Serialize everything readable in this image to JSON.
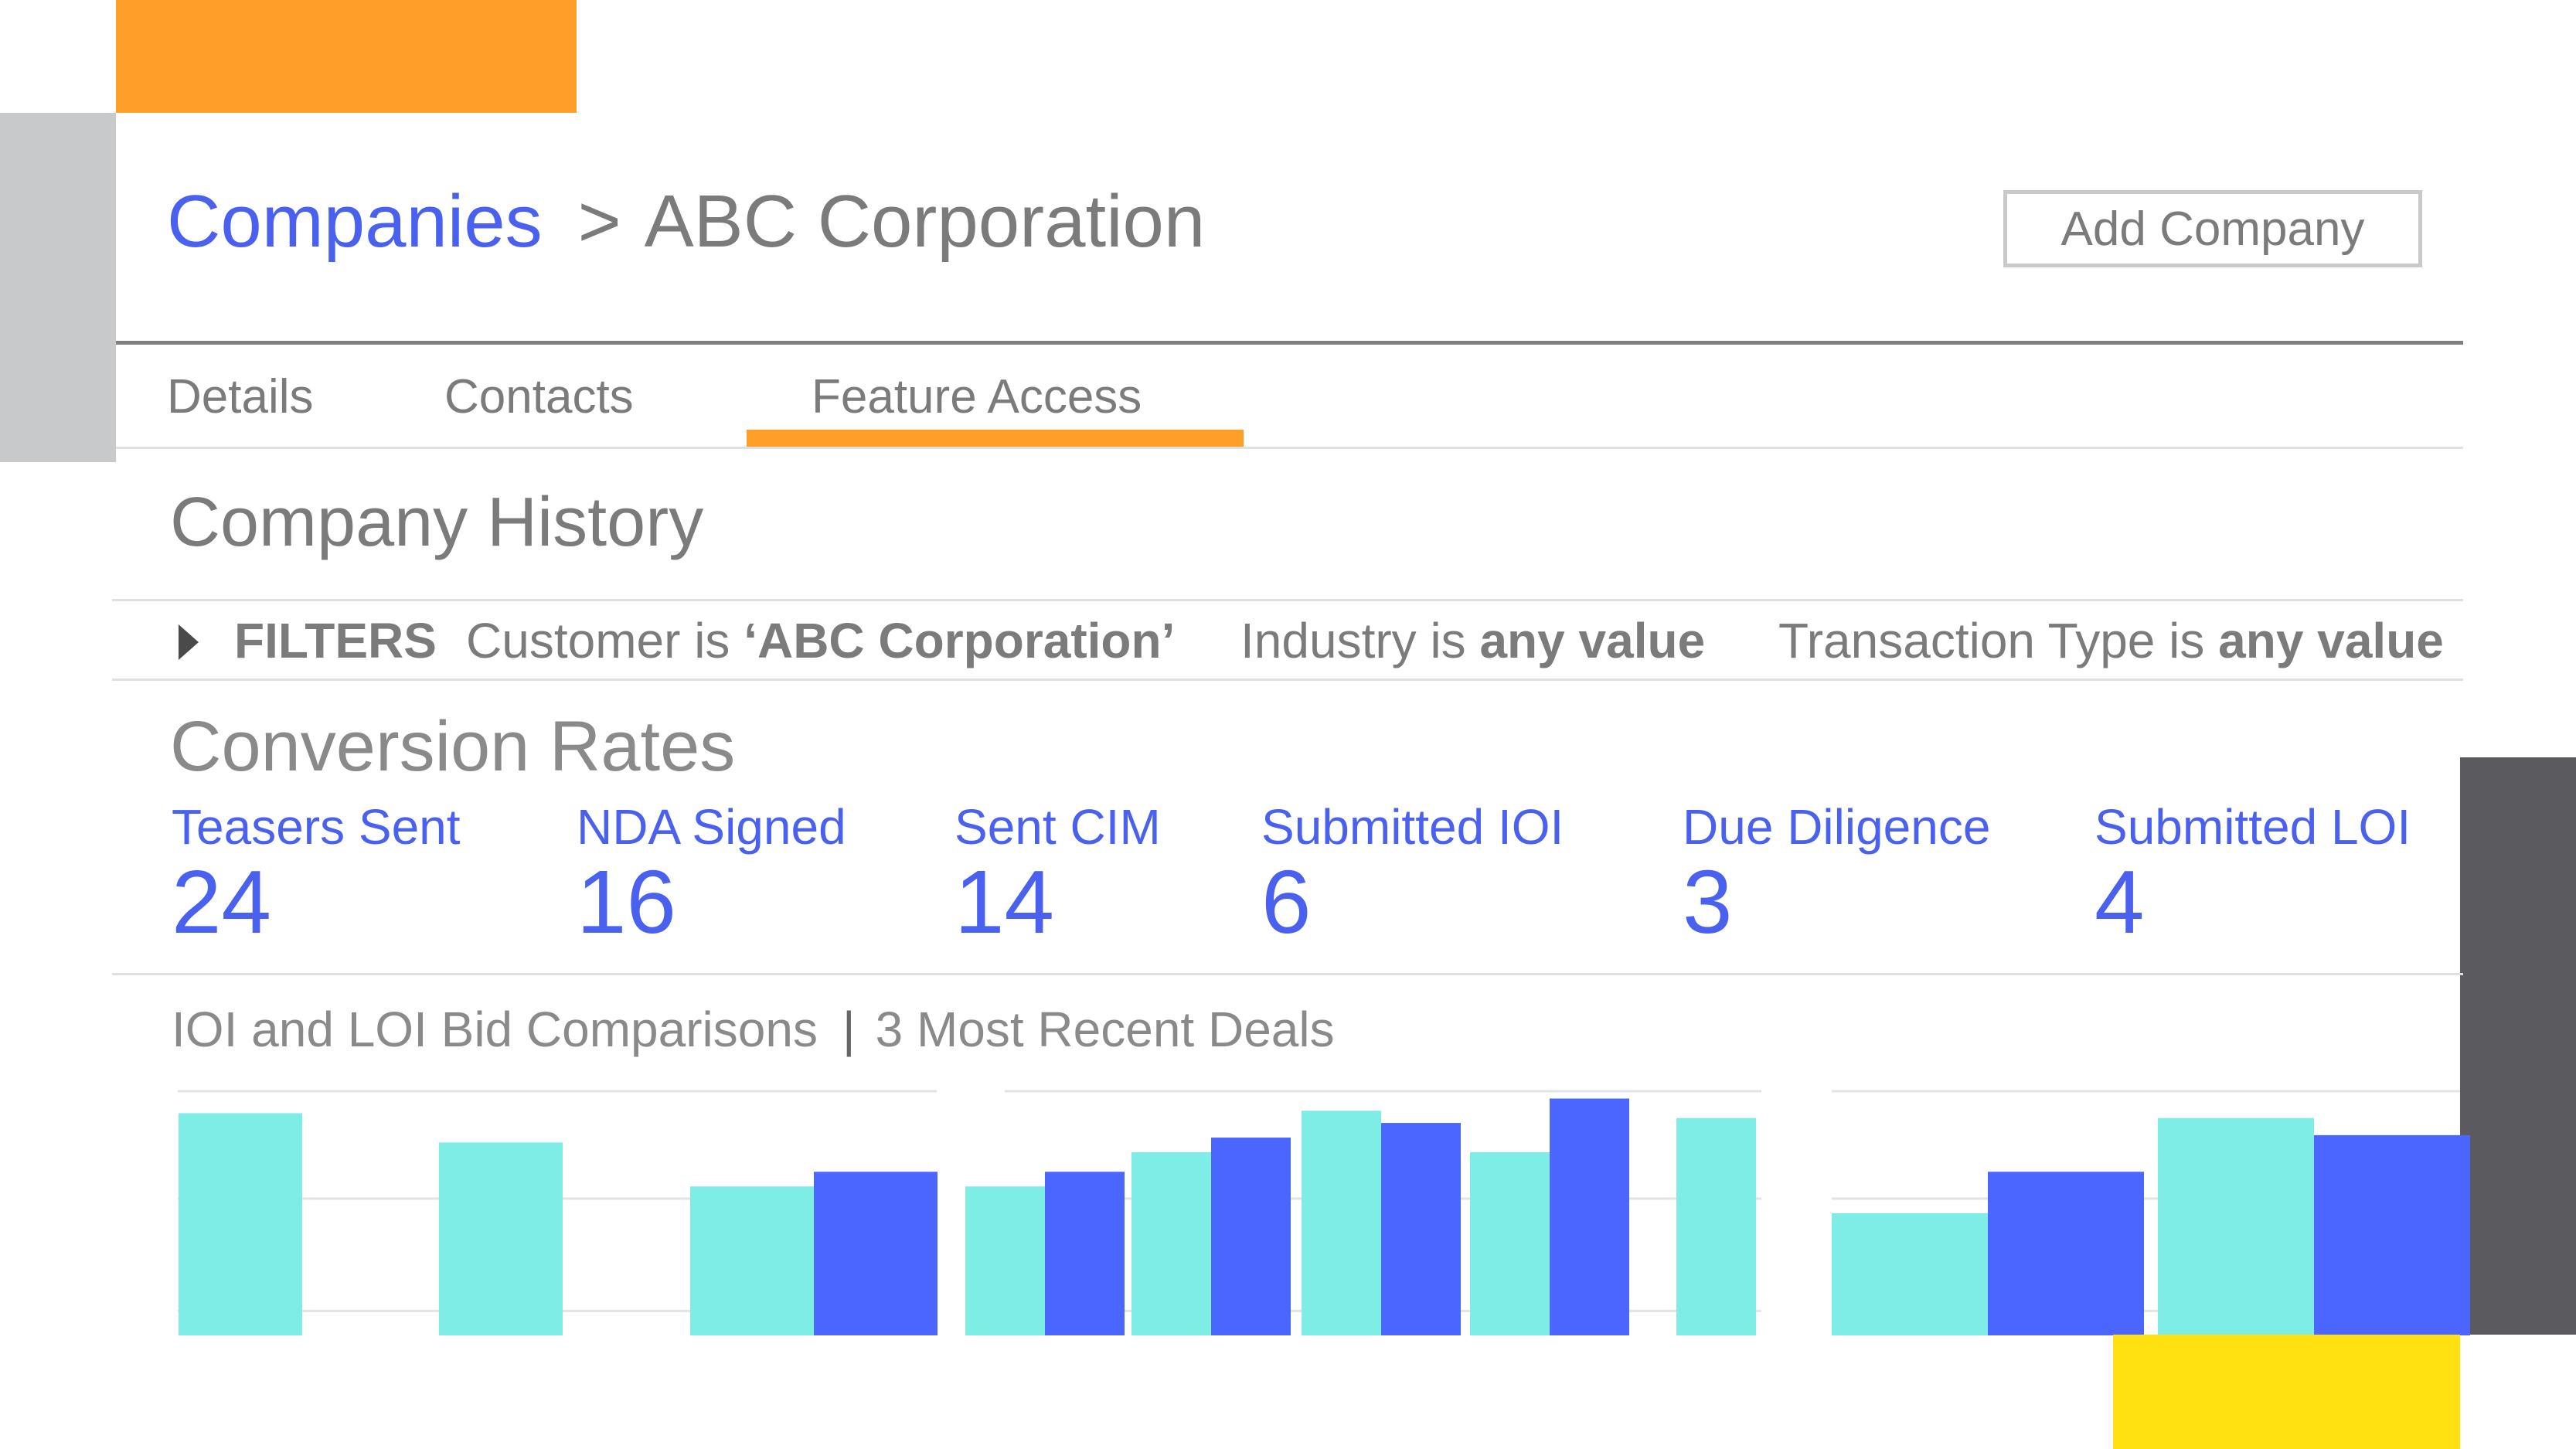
{
  "colors": {
    "accent_blue": "#4a61ef",
    "accent_orange": "#ff9e29",
    "teal": "#7eede6",
    "bar_blue": "#4a66ff",
    "text_gray": "#7b7b7b"
  },
  "breadcrumb": {
    "parent": "Companies",
    "separator": ">",
    "current": "ABC Corporation"
  },
  "header": {
    "add_button_label": "Add Company"
  },
  "tabs": [
    {
      "label": "Details",
      "active": false
    },
    {
      "label": "Contacts",
      "active": false
    },
    {
      "label": "Feature Access",
      "active": true
    }
  ],
  "section_title": "Company History",
  "filters": {
    "label": "FILTERS",
    "items": [
      {
        "prefix": "Customer is ",
        "value": "‘ABC Corporation’"
      },
      {
        "prefix": "Industry is ",
        "value": "any value"
      },
      {
        "prefix": "Transaction Type is ",
        "value": "any value"
      }
    ]
  },
  "conversion": {
    "title": "Conversion Rates",
    "metrics": [
      {
        "label": "Teasers Sent",
        "value": "24"
      },
      {
        "label": "NDA Signed",
        "value": "16"
      },
      {
        "label": "Sent CIM",
        "value": "14"
      },
      {
        "label": "Submitted IOI",
        "value": "6"
      },
      {
        "label": "Due Diligence",
        "value": "3"
      },
      {
        "label": "Submitted LOI",
        "value": "4"
      }
    ]
  },
  "bids": {
    "title": "IOI and LOI Bid Comparisons",
    "separator": "|",
    "subtitle": "3 Most Recent Deals"
  },
  "chart_data": [
    {
      "type": "bar",
      "groups": [
        {
          "bars": [
            {
              "series": "teal",
              "value": 0.91
            }
          ]
        },
        {
          "bars": [
            {
              "series": "teal",
              "value": 0.79
            }
          ]
        },
        {
          "bars": [
            {
              "series": "teal",
              "value": 0.61
            },
            {
              "series": "blue",
              "value": 0.67
            }
          ]
        }
      ],
      "ylim": [
        0,
        1
      ]
    },
    {
      "type": "bar",
      "groups": [
        {
          "bars": [
            {
              "series": "teal",
              "value": 0.61
            },
            {
              "series": "blue",
              "value": 0.67
            }
          ]
        },
        {
          "bars": [
            {
              "series": "teal",
              "value": 0.75
            },
            {
              "series": "blue",
              "value": 0.81
            }
          ]
        },
        {
          "bars": [
            {
              "series": "teal",
              "value": 0.92
            },
            {
              "series": "blue",
              "value": 0.87
            }
          ]
        },
        {
          "bars": [
            {
              "series": "teal",
              "value": 0.75
            },
            {
              "series": "blue",
              "value": 0.97
            }
          ]
        },
        {
          "bars": [
            {
              "series": "teal",
              "value": 0.89
            }
          ]
        }
      ],
      "ylim": [
        0,
        1
      ]
    },
    {
      "type": "bar",
      "groups": [
        {
          "bars": [
            {
              "series": "teal",
              "value": 0.5
            },
            {
              "series": "blue",
              "value": 0.67
            }
          ]
        },
        {
          "bars": [
            {
              "series": "teal",
              "value": 0.89
            },
            {
              "series": "blue",
              "value": 0.82
            }
          ]
        }
      ],
      "ylim": [
        0,
        1
      ]
    }
  ]
}
